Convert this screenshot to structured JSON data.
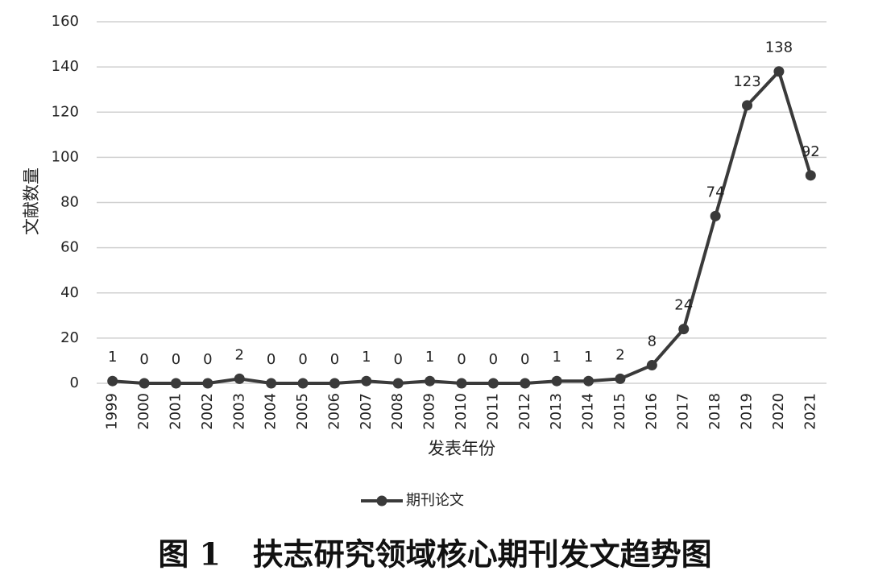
{
  "chart_data": {
    "type": "line",
    "caption": "图 1   扶志研究领域核心期刊发文趋势图",
    "x_label": "发表年份",
    "y_label": "文献数量",
    "categories": [
      "1999",
      "2000",
      "2001",
      "2002",
      "2003",
      "2004",
      "2005",
      "2006",
      "2007",
      "2008",
      "2009",
      "2010",
      "2011",
      "2012",
      "2013",
      "2014",
      "2015",
      "2016",
      "2017",
      "2018",
      "2019",
      "2020",
      "2021"
    ],
    "series": [
      {
        "name": "期刊论文",
        "color": "#3a3a3a",
        "values": [
          1,
          0,
          0,
          0,
          2,
          0,
          0,
          0,
          1,
          0,
          1,
          0,
          0,
          0,
          1,
          1,
          2,
          8,
          24,
          74,
          123,
          138,
          92
        ]
      }
    ],
    "ylim": [
      0,
      160
    ],
    "yticks": [
      0,
      20,
      40,
      60,
      80,
      100,
      120,
      140,
      160
    ],
    "grid": true,
    "legend": "bottom",
    "data_labels": true
  }
}
